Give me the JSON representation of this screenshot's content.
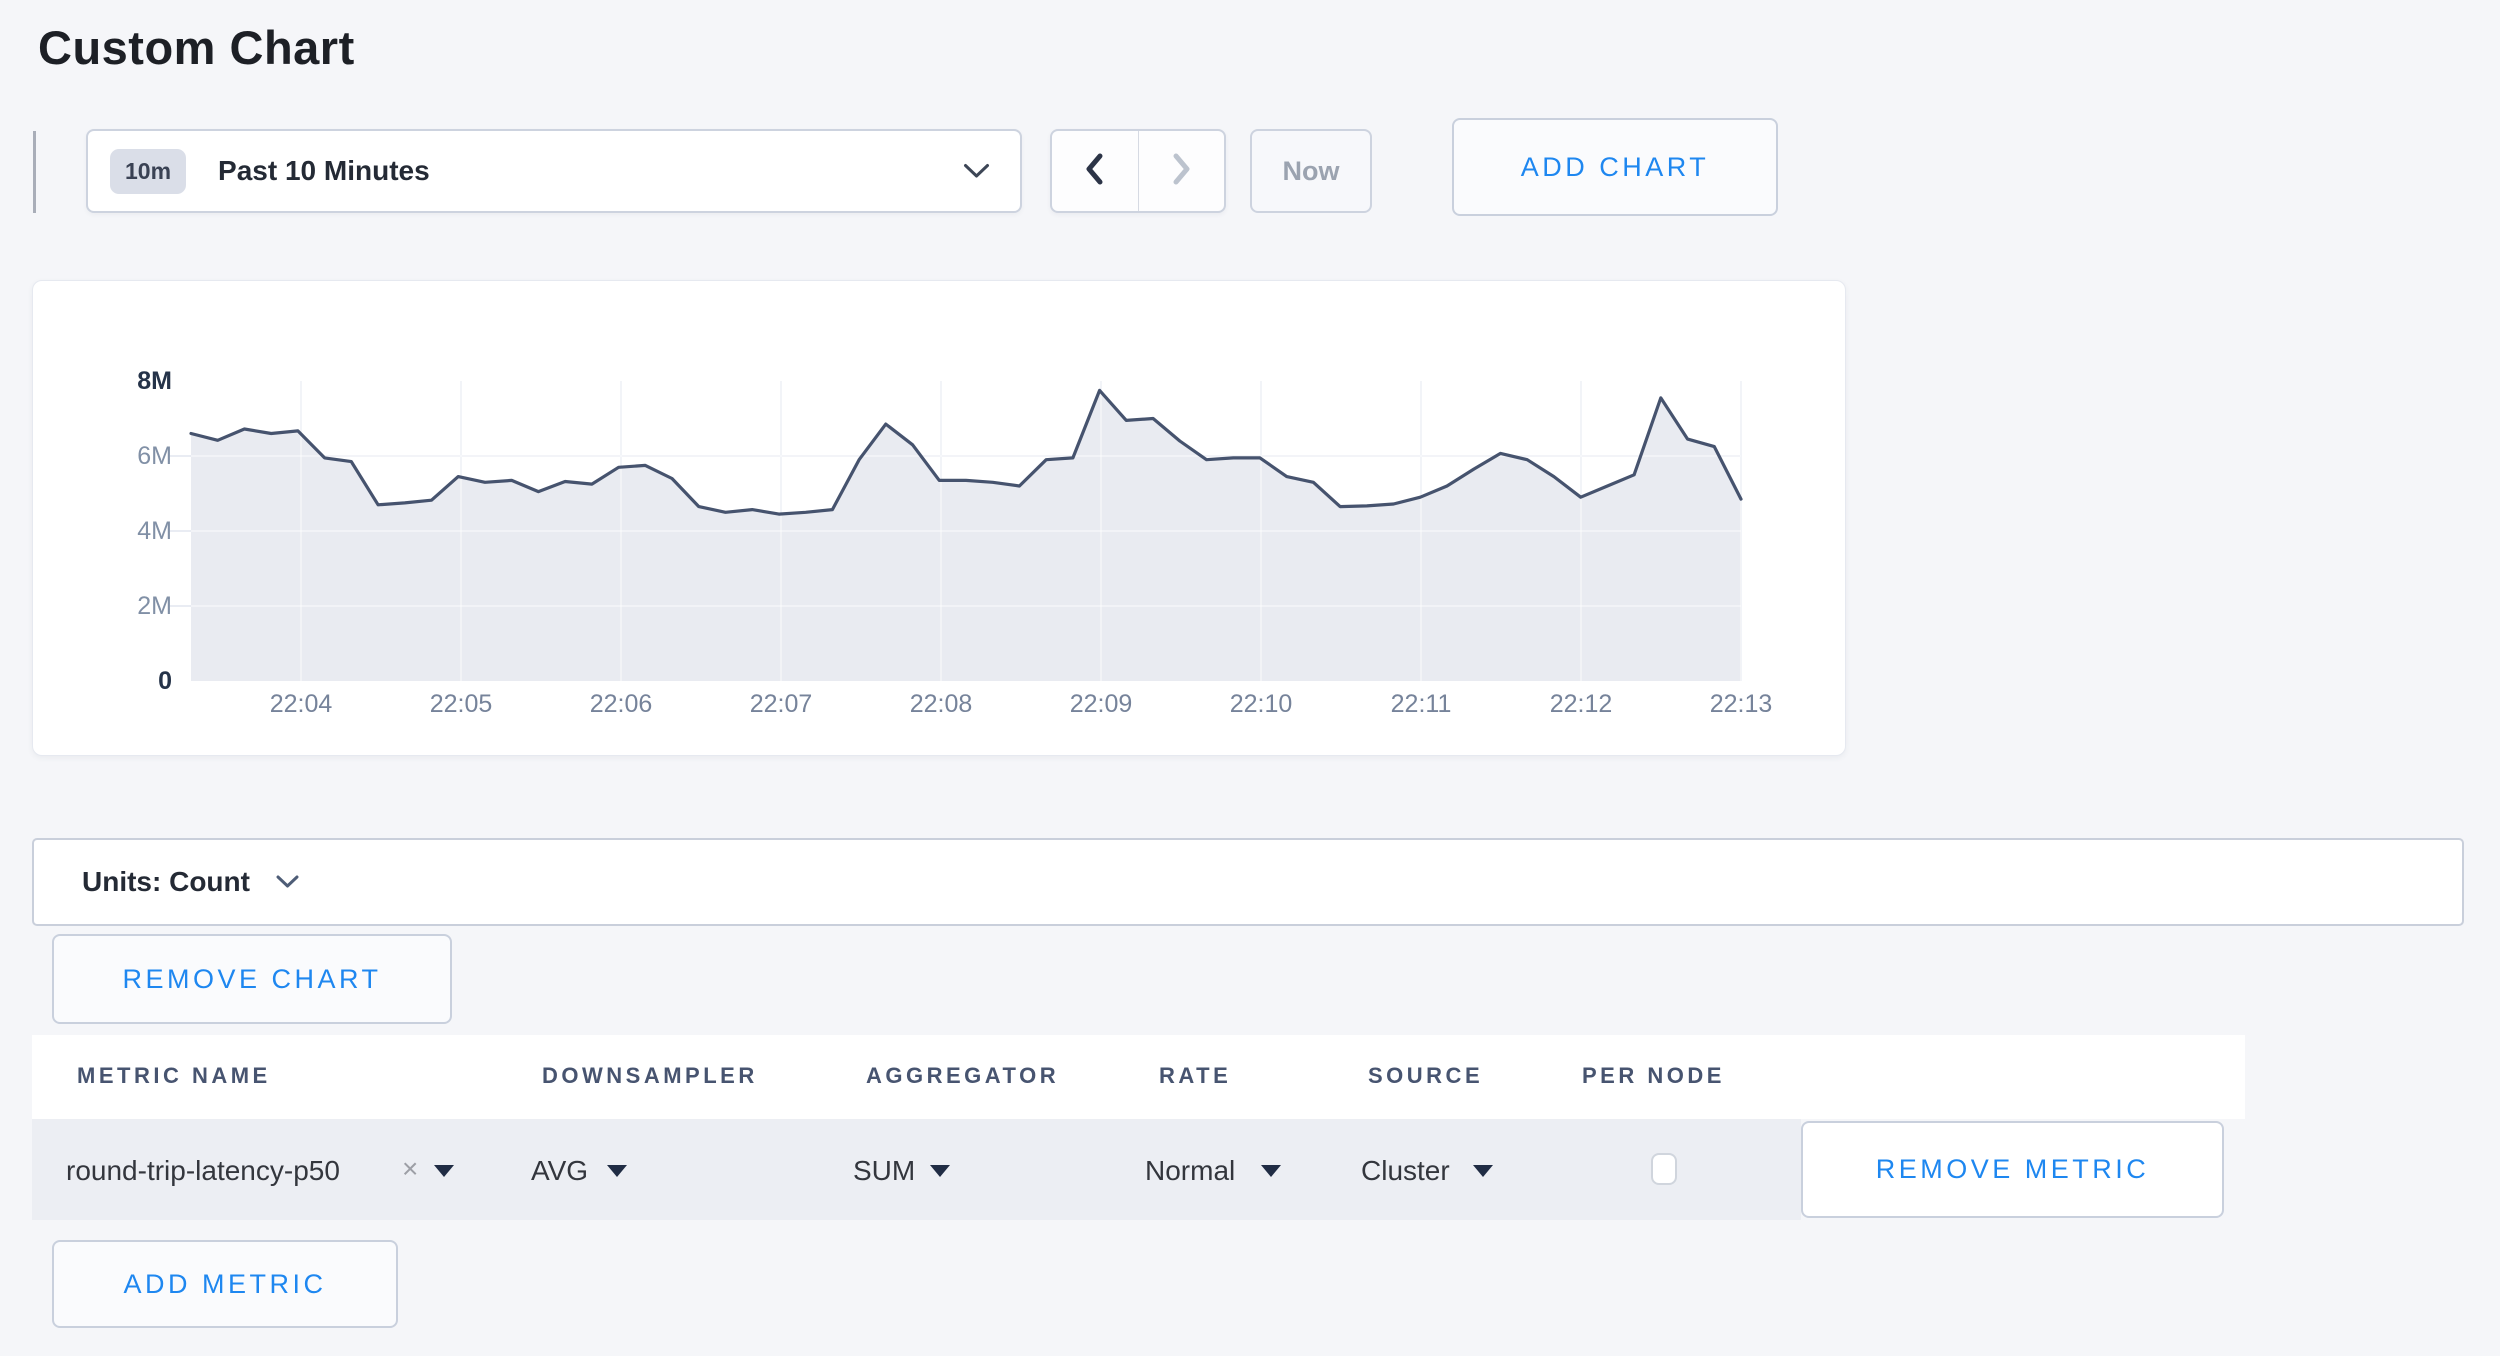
{
  "page": {
    "title": "Custom Chart"
  },
  "toolbar": {
    "time_badge": "10m",
    "time_label": "Past 10 Minutes",
    "now_label": "Now",
    "add_chart_label": "ADD CHART"
  },
  "chart_data": {
    "type": "area",
    "title": "",
    "xlabel": "",
    "ylabel": "Count",
    "x_start": "22:03:20",
    "x_step_seconds": 10,
    "values_millions": [
      6.6,
      6.42,
      6.72,
      6.6,
      6.67,
      5.95,
      5.85,
      4.7,
      4.75,
      4.82,
      5.45,
      5.3,
      5.35,
      5.05,
      5.32,
      5.25,
      5.7,
      5.75,
      5.4,
      4.65,
      4.5,
      4.57,
      4.45,
      4.5,
      4.57,
      5.9,
      6.85,
      6.3,
      5.35,
      5.35,
      5.3,
      5.2,
      5.9,
      5.95,
      7.75,
      6.95,
      7.0,
      6.4,
      5.9,
      5.95,
      5.95,
      5.45,
      5.3,
      4.65,
      4.67,
      4.72,
      4.9,
      5.2,
      5.65,
      6.07,
      5.9,
      5.45,
      4.9,
      5.2,
      5.5,
      7.55,
      6.45,
      6.25,
      4.85
    ],
    "xticks": [
      "22:04",
      "22:05",
      "22:06",
      "22:07",
      "22:08",
      "22:09",
      "22:10",
      "22:11",
      "22:12",
      "22:13"
    ],
    "yticks": [
      "0",
      "2M",
      "4M",
      "6M",
      "8M"
    ],
    "ylim_millions": [
      0,
      8
    ],
    "grid": true,
    "legend": "none",
    "line_color": "#46536e",
    "fill_color": "#e9ebf1"
  },
  "units_bar": {
    "label": "Units: Count"
  },
  "chart_actions": {
    "remove_chart_label": "REMOVE CHART",
    "add_metric_label": "ADD METRIC"
  },
  "metrics_table": {
    "headers": [
      "METRIC NAME",
      "DOWNSAMPLER",
      "AGGREGATOR",
      "RATE",
      "SOURCE",
      "PER NODE"
    ],
    "rows": [
      {
        "metric_name": "round-trip-latency-p50",
        "clear_icon": "×",
        "downsampler": "AVG",
        "aggregator": "SUM",
        "rate": "Normal",
        "source": "Cluster",
        "per_node_checked": false,
        "remove_label": "REMOVE METRIC"
      }
    ]
  },
  "colors": {
    "accent_blue": "#1e87f0",
    "page_background": "#f5f6f9",
    "row_band": "#eceef3",
    "text_dark": "#242a35",
    "text_muted": "#9ba3b0"
  }
}
